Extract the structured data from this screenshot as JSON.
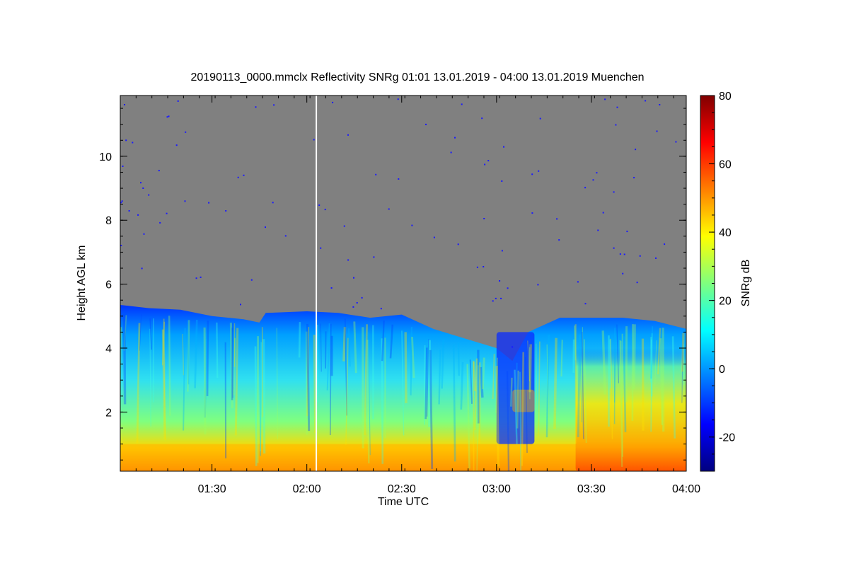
{
  "chart_data": {
    "type": "heatmap",
    "title": "20190113_0000.mmclx Reflectivity SNRg   01:01 13.01.2019 - 04:00 13.01.2019 Muenchen",
    "xlabel": "Time UTC",
    "ylabel": "Height AGL km",
    "colorbar_label": "SNRg dB",
    "xlim": [
      "01:01",
      "04:00"
    ],
    "ylim": [
      0.15,
      11.9
    ],
    "clim": [
      -30,
      80
    ],
    "x_ticks": [
      "01:30",
      "02:00",
      "02:30",
      "03:00",
      "03:30",
      "04:00"
    ],
    "y_ticks": [
      "2",
      "4",
      "6",
      "8",
      "10"
    ],
    "colorbar_ticks": [
      "-20",
      "0",
      "20",
      "40",
      "60",
      "80"
    ],
    "colormap": [
      "#00007f",
      "#0000ff",
      "#007fff",
      "#00ffff",
      "#7fff7f",
      "#ffff00",
      "#ff7f00",
      "#ff0000",
      "#7f0000"
    ],
    "no_signal_color": "#808080",
    "data_gap_time": "02:03",
    "echo_top_km": [
      {
        "time": "01:01",
        "height": 5.35
      },
      {
        "time": "01:10",
        "height": 5.25
      },
      {
        "time": "01:20",
        "height": 5.2
      },
      {
        "time": "01:30",
        "height": 5.0
      },
      {
        "time": "01:40",
        "height": 4.9
      },
      {
        "time": "01:45",
        "height": 4.8
      },
      {
        "time": "01:47",
        "height": 5.1
      },
      {
        "time": "02:00",
        "height": 5.15
      },
      {
        "time": "02:10",
        "height": 5.1
      },
      {
        "time": "02:20",
        "height": 4.95
      },
      {
        "time": "02:30",
        "height": 5.05
      },
      {
        "time": "02:40",
        "height": 4.6
      },
      {
        "time": "02:50",
        "height": 4.3
      },
      {
        "time": "03:00",
        "height": 4.0
      },
      {
        "time": "03:05",
        "height": 3.6
      },
      {
        "time": "03:10",
        "height": 4.5
      },
      {
        "time": "03:20",
        "height": 4.95
      },
      {
        "time": "03:40",
        "height": 4.95
      },
      {
        "time": "03:50",
        "height": 4.85
      },
      {
        "time": "04:00",
        "height": 4.6
      }
    ],
    "features": [
      {
        "name": "high-snr-surface-layer",
        "height_range_km": [
          0.15,
          1.0
        ],
        "snr_range_db": [
          40,
          60
        ]
      },
      {
        "name": "strong-echo-period",
        "time_range": [
          "03:25",
          "04:00"
        ],
        "height_range_km": [
          0.15,
          4.0
        ],
        "snr_range_db": [
          40,
          55
        ]
      },
      {
        "name": "weak-echo-column",
        "time_range": [
          "03:00",
          "03:12"
        ],
        "height_range_km": [
          1.0,
          4.5
        ],
        "snr_range_db": [
          -20,
          -5
        ]
      },
      {
        "name": "no-signal-pocket",
        "time_range": [
          "03:05",
          "03:12"
        ],
        "height_range_km": [
          2.0,
          2.7
        ]
      }
    ],
    "grid": false,
    "legend": "colorbar-right"
  }
}
